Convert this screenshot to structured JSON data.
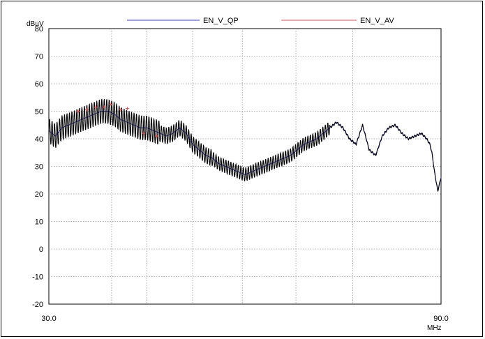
{
  "chart_data": {
    "type": "line",
    "ylabel": "dBµV",
    "xlabel": "MHz",
    "xlim": [
      30.0,
      90.0
    ],
    "ylim": [
      -20,
      80
    ],
    "yticks": [
      80,
      70,
      60,
      50,
      40,
      30,
      20,
      10,
      0,
      -10,
      -20
    ],
    "xtick_labels": [
      "30.0",
      "90.0"
    ],
    "x_gridlines": [
      39.6,
      45.0,
      52.0,
      59.6,
      67.8,
      76.5
    ],
    "grid": true,
    "legend_placement": "top",
    "series": [
      {
        "name": "EN_V_QP",
        "color": "#3b3bd6",
        "x": [
          30.0,
          31.0,
          32.0,
          33.0,
          34.0,
          35.0,
          36.0,
          37.0,
          38.0,
          39.0,
          40.0,
          41.0,
          42.0,
          43.0,
          44.0,
          45.0,
          46.0,
          47.0,
          48.0,
          49.0,
          50.0,
          51.0,
          52.0,
          53.0,
          54.0,
          55.0,
          56.0,
          57.0,
          58.0,
          59.0,
          60.0,
          61.0,
          62.0,
          63.0,
          64.0,
          65.0,
          66.0,
          67.0,
          68.0,
          69.0,
          70.0,
          71.0,
          72.0,
          73.0,
          74.0,
          75.0,
          76.0,
          77.0,
          78.0,
          79.0,
          80.0,
          81.0,
          82.0,
          83.0,
          84.0,
          85.0,
          86.0,
          87.0,
          87.8,
          88.3,
          88.6,
          89.0,
          89.5,
          90.0
        ],
        "values": [
          43,
          41,
          44,
          45,
          46,
          47,
          48,
          49,
          50,
          50,
          49,
          47,
          46,
          45,
          44,
          44,
          43,
          42,
          41,
          42,
          44,
          42,
          38,
          36,
          34,
          33,
          31,
          30,
          29,
          28,
          27,
          28,
          29,
          30,
          31,
          32,
          33,
          34,
          36,
          38,
          39,
          40,
          42,
          44,
          46,
          44,
          40,
          38,
          45,
          36,
          34,
          41,
          44,
          45,
          42,
          40,
          41,
          42,
          40,
          38,
          35,
          28,
          21,
          26
        ]
      },
      {
        "name": "EN_V_AV",
        "color": "#e05555",
        "x": [
          34.5,
          35.8,
          37.2,
          38.5,
          39.5,
          41.0,
          42.0,
          44.5,
          46.5
        ],
        "values": [
          50,
          50.5,
          51.5,
          51.5,
          52.5,
          50.5,
          51,
          42,
          41
        ]
      }
    ]
  }
}
